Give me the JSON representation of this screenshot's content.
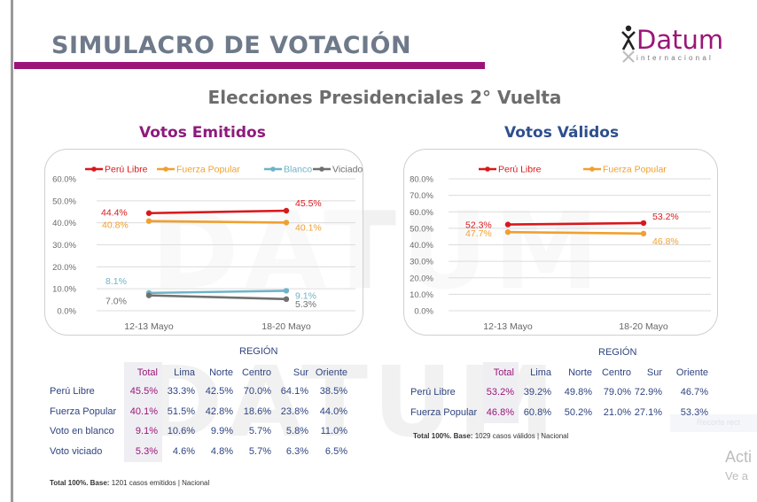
{
  "header": {
    "title": "SIMULACRO DE VOTACIÓN",
    "logo": {
      "name": "Datum",
      "sub": "internacional",
      "icon": "person-icon"
    },
    "subtitle": "Elecciones Presidenciales 2° Vuelta",
    "watermark": "DATUM"
  },
  "colors": {
    "brand": "#9b1578",
    "peru_libre": "#d7191c",
    "fuerza_popular": "#f0a030",
    "blanco": "#6fb3c8",
    "viciado": "#707070",
    "table_text": "#2f4480",
    "total_text": "#9b1578"
  },
  "sections": {
    "emitidos_title": "Votos Emitidos",
    "validos_title": "Votos Válidos"
  },
  "chart_data": [
    {
      "type": "line",
      "title": "Votos Emitidos",
      "categories": [
        "12-13 Mayo",
        "18-20 Mayo"
      ],
      "ylim": [
        0,
        60
      ],
      "yticks": [
        "0.0%",
        "10.0%",
        "20.0%",
        "30.0%",
        "40.0%",
        "50.0%",
        "60.0%"
      ],
      "ytick_values": [
        0,
        10,
        20,
        30,
        40,
        50,
        60
      ],
      "grid": true,
      "legend": "top",
      "series": [
        {
          "name": "Perú Libre",
          "color": "#d7191c",
          "values": [
            44.4,
            45.5
          ],
          "labels": [
            "44.4%",
            "45.5%"
          ]
        },
        {
          "name": "Fuerza Popular",
          "color": "#f0a030",
          "values": [
            40.8,
            40.1
          ],
          "labels": [
            "40.8%",
            "40.1%"
          ]
        },
        {
          "name": "Blanco",
          "color": "#6fb3c8",
          "values": [
            8.1,
            9.1
          ],
          "labels": [
            "8.1%",
            "9.1%"
          ]
        },
        {
          "name": "Viciado",
          "color": "#707070",
          "values": [
            7.0,
            5.3
          ],
          "labels": [
            "7.0%",
            "5.3%"
          ]
        }
      ]
    },
    {
      "type": "line",
      "title": "Votos Válidos",
      "categories": [
        "12-13 Mayo",
        "18-20 Mayo"
      ],
      "ylim": [
        0,
        80
      ],
      "yticks": [
        "0.0%",
        "10.0%",
        "20.0%",
        "30.0%",
        "40.0%",
        "50.0%",
        "60.0%",
        "70.0%",
        "80.0%"
      ],
      "ytick_values": [
        0,
        10,
        20,
        30,
        40,
        50,
        60,
        70,
        80
      ],
      "grid": true,
      "legend": "top",
      "series": [
        {
          "name": "Perú Libre",
          "color": "#d7191c",
          "values": [
            52.3,
            53.2
          ],
          "labels": [
            "52.3%",
            "53.2%"
          ]
        },
        {
          "name": "Fuerza Popular",
          "color": "#f0a030",
          "values": [
            47.7,
            46.8
          ],
          "labels": [
            "47.7%",
            "46.8%"
          ]
        }
      ]
    }
  ],
  "tables": {
    "emitidos": {
      "group_header": "REGIÓN",
      "columns": [
        "Total",
        "Lima",
        "Norte",
        "Centro",
        "Sur",
        "Oriente"
      ],
      "rows": [
        {
          "label": "Perú Libre",
          "values": [
            "45.5%",
            "33.3%",
            "42.5%",
            "70.0%",
            "64.1%",
            "38.5%"
          ]
        },
        {
          "label": "Fuerza Popular",
          "values": [
            "40.1%",
            "51.5%",
            "42.8%",
            "18.6%",
            "23.8%",
            "44.0%"
          ]
        },
        {
          "label": "Voto en blanco",
          "values": [
            "9.1%",
            "10.6%",
            "9.9%",
            "5.7%",
            "5.8%",
            "11.0%"
          ]
        },
        {
          "label": "Voto viciado",
          "values": [
            "5.3%",
            "4.6%",
            "4.8%",
            "5.7%",
            "6.3%",
            "6.5%"
          ]
        }
      ],
      "footnote_total": "Total 100%.",
      "footnote_base_label": "Base:",
      "footnote_base": "1201 casos emitidos | Nacional"
    },
    "validos": {
      "group_header": "REGIÓN",
      "columns": [
        "Total",
        "Lima",
        "Norte",
        "Centro",
        "Sur",
        "Oriente"
      ],
      "rows": [
        {
          "label": "Perú Libre",
          "values": [
            "53.2%",
            "39.2%",
            "49.8%",
            "79.0%",
            "72.9%",
            "46.7%"
          ]
        },
        {
          "label": "Fuerza Popular",
          "values": [
            "46.8%",
            "60.8%",
            "50.2%",
            "21.0%",
            "27.1%",
            "53.3%"
          ]
        }
      ],
      "footnote_total": "Total 100%.",
      "footnote_base_label": "Base:",
      "footnote_base": "1029 casos válidos | Nacional"
    }
  },
  "os_overlay": {
    "tooltip": "Recorte rect",
    "activate_line1": "Acti",
    "activate_line2": "Ve a"
  }
}
